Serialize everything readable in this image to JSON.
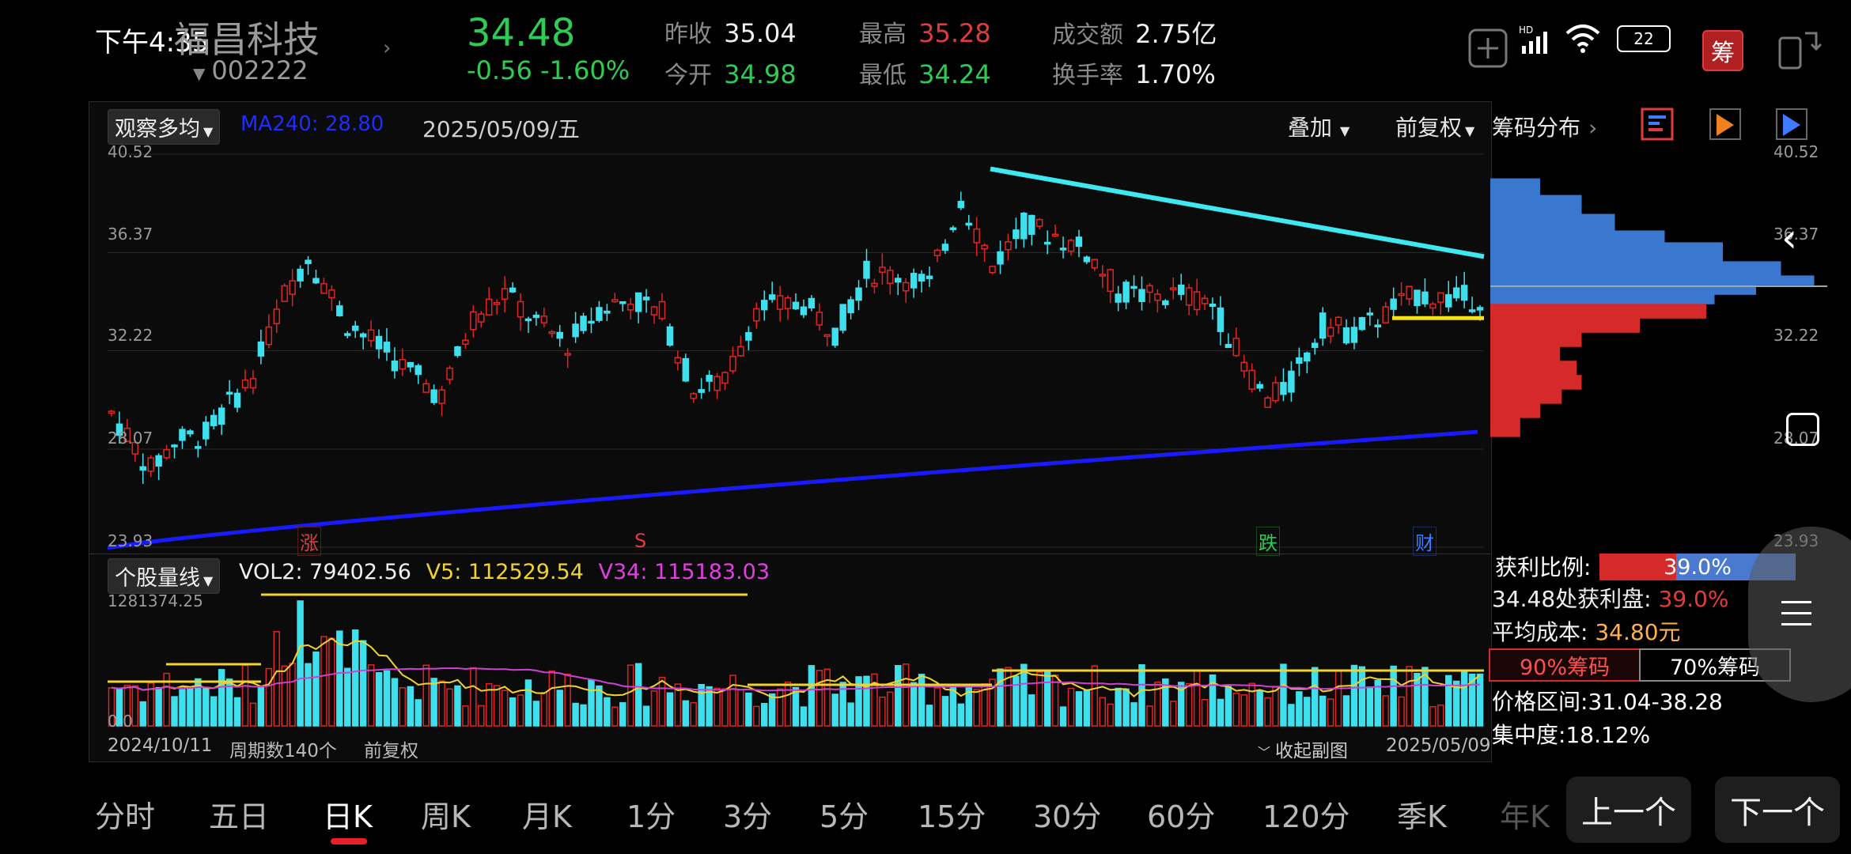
{
  "status_bar": {
    "time": "下午4:35",
    "battery": "22"
  },
  "stock": {
    "name": "福昌科技",
    "code": "002222",
    "price": "34.48",
    "change": "-0.56",
    "change_pct": "-1.60%"
  },
  "quote": {
    "prev_close_label": "昨收",
    "prev_close": "35.04",
    "open_label": "今开",
    "open": "34.98",
    "high_label": "最高",
    "high": "35.28",
    "low_label": "最低",
    "low": "34.24",
    "amount_label": "成交额",
    "amount": "2.75亿",
    "turnover_label": "换手率",
    "turnover": "1.70%"
  },
  "header_icons": [
    "plus-icon",
    "hd-signal-icon",
    "wifi-icon",
    "battery-icon",
    "chip-badge-icon",
    "phone-switch-icon"
  ],
  "chip_badge": "筹",
  "chart_toolbar": {
    "indicator_btn": "观察多均",
    "ma_label": "MA240: 28.80",
    "date": "2025/05/09/五",
    "overlay_btn": "叠加",
    "adjust_btn": "前复权",
    "chip_dist": "筹码分布"
  },
  "main_axis": {
    "labels": [
      "40.52",
      "36.37",
      "32.22",
      "28.07",
      "23.93"
    ]
  },
  "markers": [
    {
      "text": "涨",
      "color": "#e23b3b"
    },
    {
      "text": "S",
      "color": "#e23b3b"
    },
    {
      "text": "跌",
      "color": "#2ecc54"
    },
    {
      "text": "财",
      "color": "#3f7bff"
    }
  ],
  "volume": {
    "indicator_btn": "个股量线",
    "vol2": "VOL2: 79402.56",
    "v5": "V5: 112529.54",
    "v34": "V34: 115183.03",
    "max_label": "1281374.25",
    "min_label": "0.0"
  },
  "footer": {
    "start_date": "2024/10/11",
    "period_count": "周期数140个",
    "adjust": "前复权",
    "collapse": "收起副图",
    "end_date": "2025/05/09"
  },
  "chip_panel": {
    "profit_ratio_label": "获利比例:",
    "profit_ratio": "39.0%",
    "profit_ratio_value": 0.39,
    "profit_at_label": "34.48处获利盘:",
    "profit_at": "39.0%",
    "avg_cost_label": "平均成本:",
    "avg_cost": "34.80元",
    "chip90": "90%筹码",
    "chip70": "70%筹码",
    "range_label": "价格区间:",
    "range": "31.04-38.28",
    "concentration_label": "集中度:",
    "concentration": "18.12%"
  },
  "period_tabs": [
    "分时",
    "五日",
    "日K",
    "周K",
    "月K",
    "1分",
    "3分",
    "5分",
    "15分",
    "30分",
    "60分",
    "120分",
    "季K",
    "年K"
  ],
  "active_tab": "日K",
  "nav": {
    "prev": "上一个",
    "next": "下一个"
  },
  "chart_data": {
    "type": "candlestick",
    "x_range": [
      "2024/10/11",
      "2025/05/09"
    ],
    "ylim": [
      23.93,
      40.52
    ],
    "y_ticks": [
      40.52,
      36.37,
      32.22,
      28.07,
      23.93
    ],
    "period_count": 140,
    "last_close": 34.48,
    "ma240_last": 28.8,
    "volume_max": 1281374.25,
    "volume_series": [
      {
        "name": "VOL2",
        "last": 79402.56
      },
      {
        "name": "V5",
        "last": 112529.54
      },
      {
        "name": "V34",
        "last": 115183.03
      }
    ]
  }
}
